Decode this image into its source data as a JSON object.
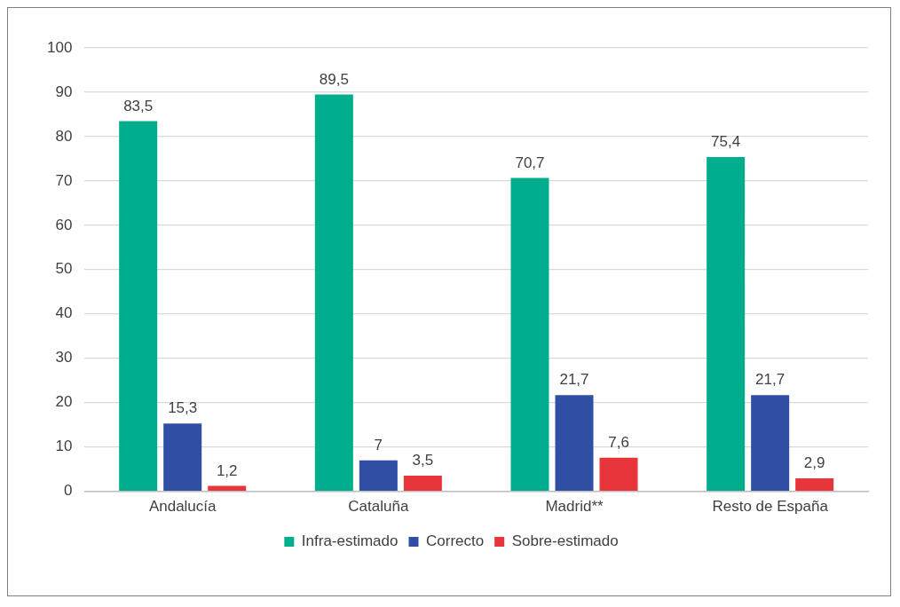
{
  "chart_data": {
    "type": "bar",
    "categories": [
      "Andalucía",
      "Cataluña",
      "Madrid**",
      "Resto de España"
    ],
    "series": [
      {
        "name": "Infra-estimado",
        "color": "#00ae8e",
        "values": [
          83.5,
          89.5,
          70.7,
          75.4
        ],
        "value_labels": [
          "83,5",
          "89,5",
          "70,7",
          "75,4"
        ]
      },
      {
        "name": "Correcto",
        "color": "#2e4fa3",
        "values": [
          15.3,
          7,
          21.7,
          21.7
        ],
        "value_labels": [
          "15,3",
          "7",
          "21,7",
          "21,7"
        ]
      },
      {
        "name": "Sobre-estimado",
        "color": "#e8353b",
        "values": [
          1.2,
          3.5,
          7.6,
          2.9
        ],
        "value_labels": [
          "1,2",
          "3,5",
          "7,6",
          "2,9"
        ]
      }
    ],
    "ylim": [
      0,
      100
    ],
    "yticks": [
      0,
      10,
      20,
      30,
      40,
      50,
      60,
      70,
      80,
      90,
      100
    ],
    "grid": "y",
    "legend": "bottom"
  }
}
